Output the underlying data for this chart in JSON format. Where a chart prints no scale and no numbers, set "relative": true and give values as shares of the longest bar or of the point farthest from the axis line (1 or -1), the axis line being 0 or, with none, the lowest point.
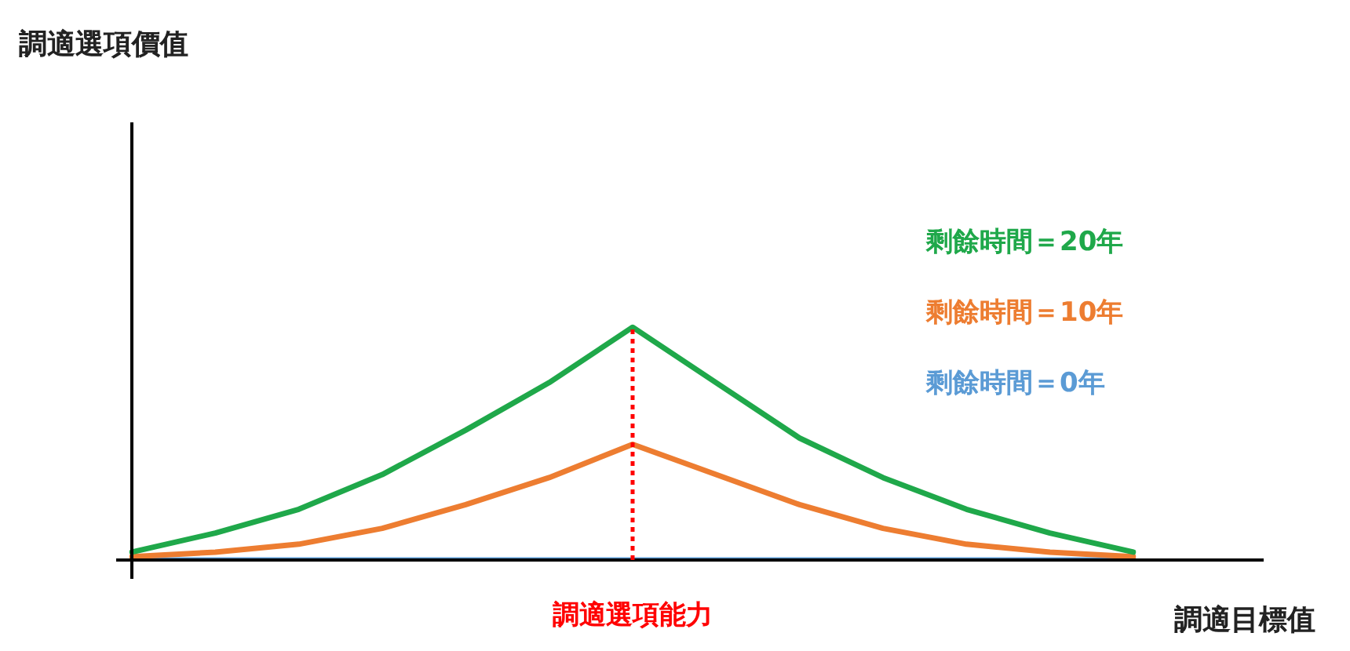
{
  "chart_data": {
    "type": "line",
    "relative": true,
    "xlabel": "調適目標值",
    "marker": "none",
    "line_style": "solid",
    "categories": [
      null,
      null,
      null,
      null,
      null,
      null,
      null,
      null,
      null,
      null,
      null,
      null,
      null
    ],
    "series": [
      {
        "name": "剩餘時間＝20年",
        "color": "#1fa84a",
        "values": [
          0.034,
          0.116,
          0.218,
          0.367,
          0.558,
          0.762,
          1,
          0.762,
          0.524,
          0.354,
          0.218,
          0.116,
          0.034
        ]
      },
      {
        "name": "剩餘時間＝10年",
        "color": "#ed7d31",
        "values": [
          0.014,
          0.034,
          0.068,
          0.136,
          0.238,
          0.354,
          0.497,
          0.367,
          0.238,
          0.136,
          0.068,
          0.034,
          0.014
        ]
      },
      {
        "name": "剩餘時間＝0年",
        "color": "#5b9bd5",
        "values": [
          0,
          0,
          0,
          0,
          0,
          0,
          0,
          0,
          0,
          0,
          0,
          0,
          0
        ]
      }
    ],
    "annotations": [
      "調適選項價值",
      "調適選項能力"
    ]
  }
}
